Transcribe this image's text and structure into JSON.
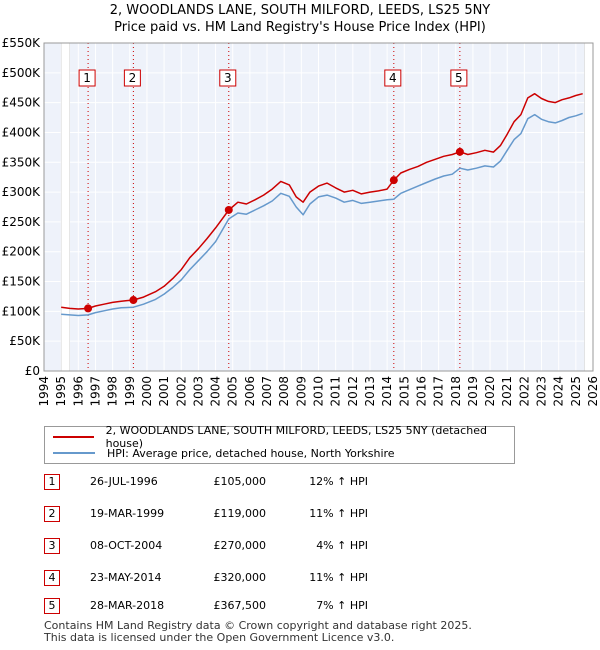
{
  "chart_data": {
    "type": "line",
    "title": "2, WOODLANDS LANE, SOUTH MILFORD, LEEDS, LS25 5NY",
    "subtitle": "Price paid vs. HM Land Registry's House Price Index (HPI)",
    "xlabel": "",
    "ylabel": "",
    "xlim": [
      1994,
      2026
    ],
    "ylim": [
      0,
      550000
    ],
    "y_ticks": [
      {
        "value": 0,
        "label": "£0"
      },
      {
        "value": 50000,
        "label": "£50K"
      },
      {
        "value": 100000,
        "label": "£100K"
      },
      {
        "value": 150000,
        "label": "£150K"
      },
      {
        "value": 200000,
        "label": "£200K"
      },
      {
        "value": 250000,
        "label": "£250K"
      },
      {
        "value": 300000,
        "label": "£300K"
      },
      {
        "value": 350000,
        "label": "£350K"
      },
      {
        "value": 400000,
        "label": "£400K"
      },
      {
        "value": 450000,
        "label": "£450K"
      },
      {
        "value": 500000,
        "label": "£500K"
      },
      {
        "value": 550000,
        "label": "£550K"
      }
    ],
    "x_ticks": [
      "1994",
      "1995",
      "1996",
      "1997",
      "1998",
      "1999",
      "2000",
      "2001",
      "2002",
      "2003",
      "2004",
      "2005",
      "2006",
      "2007",
      "2008",
      "2009",
      "2010",
      "2011",
      "2012",
      "2013",
      "2014",
      "2015",
      "2016",
      "2017",
      "2018",
      "2019",
      "2020",
      "2021",
      "2022",
      "2023",
      "2024",
      "2025",
      "2026"
    ],
    "grid": true,
    "shaded_regions": [
      {
        "from": 1995.0,
        "to": 1995.5
      },
      {
        "from": 2025.5,
        "to": 2026.0
      }
    ],
    "series": [
      {
        "name": "2, WOODLANDS LANE, SOUTH MILFORD, LEEDS, LS25 5NY (detached house)",
        "color": "#cc0000",
        "x": [
          1995.0,
          1995.5,
          1996.0,
          1996.57,
          1997.0,
          1997.5,
          1998.0,
          1998.5,
          1999.21,
          1999.8,
          2000.5,
          2001.0,
          2001.5,
          2002.0,
          2002.5,
          2003.0,
          2003.5,
          2004.0,
          2004.77,
          2005.3,
          2005.8,
          2006.3,
          2006.8,
          2007.3,
          2007.8,
          2008.3,
          2008.7,
          2009.1,
          2009.5,
          2010.0,
          2010.5,
          2011.0,
          2011.5,
          2012.0,
          2012.5,
          2013.0,
          2013.5,
          2014.0,
          2014.39,
          2014.8,
          2015.3,
          2015.8,
          2016.3,
          2016.8,
          2017.3,
          2017.8,
          2018.24,
          2018.7,
          2019.2,
          2019.7,
          2020.2,
          2020.6,
          2021.0,
          2021.4,
          2021.8,
          2022.2,
          2022.6,
          2023.0,
          2023.4,
          2023.8,
          2024.2,
          2024.6,
          2025.0,
          2025.4
        ],
        "values": [
          107000,
          105000,
          104000,
          105000,
          109000,
          112000,
          115000,
          117000,
          119000,
          124000,
          133000,
          142000,
          155000,
          170000,
          190000,
          205000,
          222000,
          240000,
          270000,
          283000,
          280000,
          287000,
          295000,
          305000,
          318000,
          312000,
          292000,
          283000,
          300000,
          310000,
          315000,
          307000,
          300000,
          303000,
          297000,
          300000,
          302000,
          305000,
          320000,
          332000,
          338000,
          343000,
          350000,
          355000,
          360000,
          363000,
          367500,
          363000,
          366000,
          370000,
          367000,
          378000,
          397000,
          418000,
          430000,
          458000,
          465000,
          457000,
          452000,
          450000,
          455000,
          458000,
          462000,
          465000
        ]
      },
      {
        "name": "HPI: Average price, detached house, North Yorkshire",
        "color": "#6699cc",
        "x": [
          1995.0,
          1995.5,
          1996.0,
          1996.57,
          1997.0,
          1997.5,
          1998.0,
          1998.5,
          1999.21,
          1999.8,
          2000.5,
          2001.0,
          2001.5,
          2002.0,
          2002.5,
          2003.0,
          2003.5,
          2004.0,
          2004.77,
          2005.3,
          2005.8,
          2006.3,
          2006.8,
          2007.3,
          2007.8,
          2008.3,
          2008.7,
          2009.1,
          2009.5,
          2010.0,
          2010.5,
          2011.0,
          2011.5,
          2012.0,
          2012.5,
          2013.0,
          2013.5,
          2014.0,
          2014.39,
          2014.8,
          2015.3,
          2015.8,
          2016.3,
          2016.8,
          2017.3,
          2017.8,
          2018.24,
          2018.7,
          2019.2,
          2019.7,
          2020.2,
          2020.6,
          2021.0,
          2021.4,
          2021.8,
          2022.2,
          2022.6,
          2023.0,
          2023.4,
          2023.8,
          2024.2,
          2024.6,
          2025.0,
          2025.4
        ],
        "values": [
          95000,
          94000,
          93000,
          94000,
          98000,
          101000,
          104000,
          106000,
          107000,
          112000,
          120000,
          129000,
          140000,
          153000,
          170000,
          185000,
          200000,
          217000,
          255000,
          265000,
          263000,
          270000,
          277000,
          285000,
          298000,
          293000,
          275000,
          262000,
          280000,
          292000,
          295000,
          290000,
          283000,
          286000,
          281000,
          283000,
          285000,
          287000,
          288000,
          298000,
          304000,
          310000,
          316000,
          322000,
          327000,
          330000,
          340000,
          337000,
          340000,
          344000,
          342000,
          352000,
          370000,
          388000,
          398000,
          423000,
          430000,
          422000,
          418000,
          416000,
          420000,
          425000,
          428000,
          432000
        ]
      }
    ],
    "sales": [
      {
        "label": "1",
        "x": 1996.57,
        "value": 105000
      },
      {
        "label": "2",
        "x": 1999.21,
        "value": 119000
      },
      {
        "label": "3",
        "x": 2004.77,
        "value": 270000
      },
      {
        "label": "4",
        "x": 2014.39,
        "value": 320000
      },
      {
        "label": "5",
        "x": 2018.24,
        "value": 367500
      }
    ]
  },
  "legend": {
    "property": "2, WOODLANDS LANE, SOUTH MILFORD, LEEDS, LS25 5NY (detached house)",
    "hpi": "HPI: Average price, detached house, North Yorkshire"
  },
  "sales_table": [
    {
      "num": "1",
      "date": "26-JUL-1996",
      "price": "£105,000",
      "hpi": "12% ↑ HPI"
    },
    {
      "num": "2",
      "date": "19-MAR-1999",
      "price": "£119,000",
      "hpi": "11% ↑ HPI"
    },
    {
      "num": "3",
      "date": "08-OCT-2004",
      "price": "£270,000",
      "hpi": "4% ↑ HPI"
    },
    {
      "num": "4",
      "date": "23-MAY-2014",
      "price": "£320,000",
      "hpi": "11% ↑ HPI"
    },
    {
      "num": "5",
      "date": "28-MAR-2018",
      "price": "£367,500",
      "hpi": "7% ↑ HPI"
    }
  ],
  "footer": {
    "line1": "Contains HM Land Registry data © Crown copyright and database right 2025.",
    "line2": "This data is licensed under the Open Government Licence v3.0."
  }
}
